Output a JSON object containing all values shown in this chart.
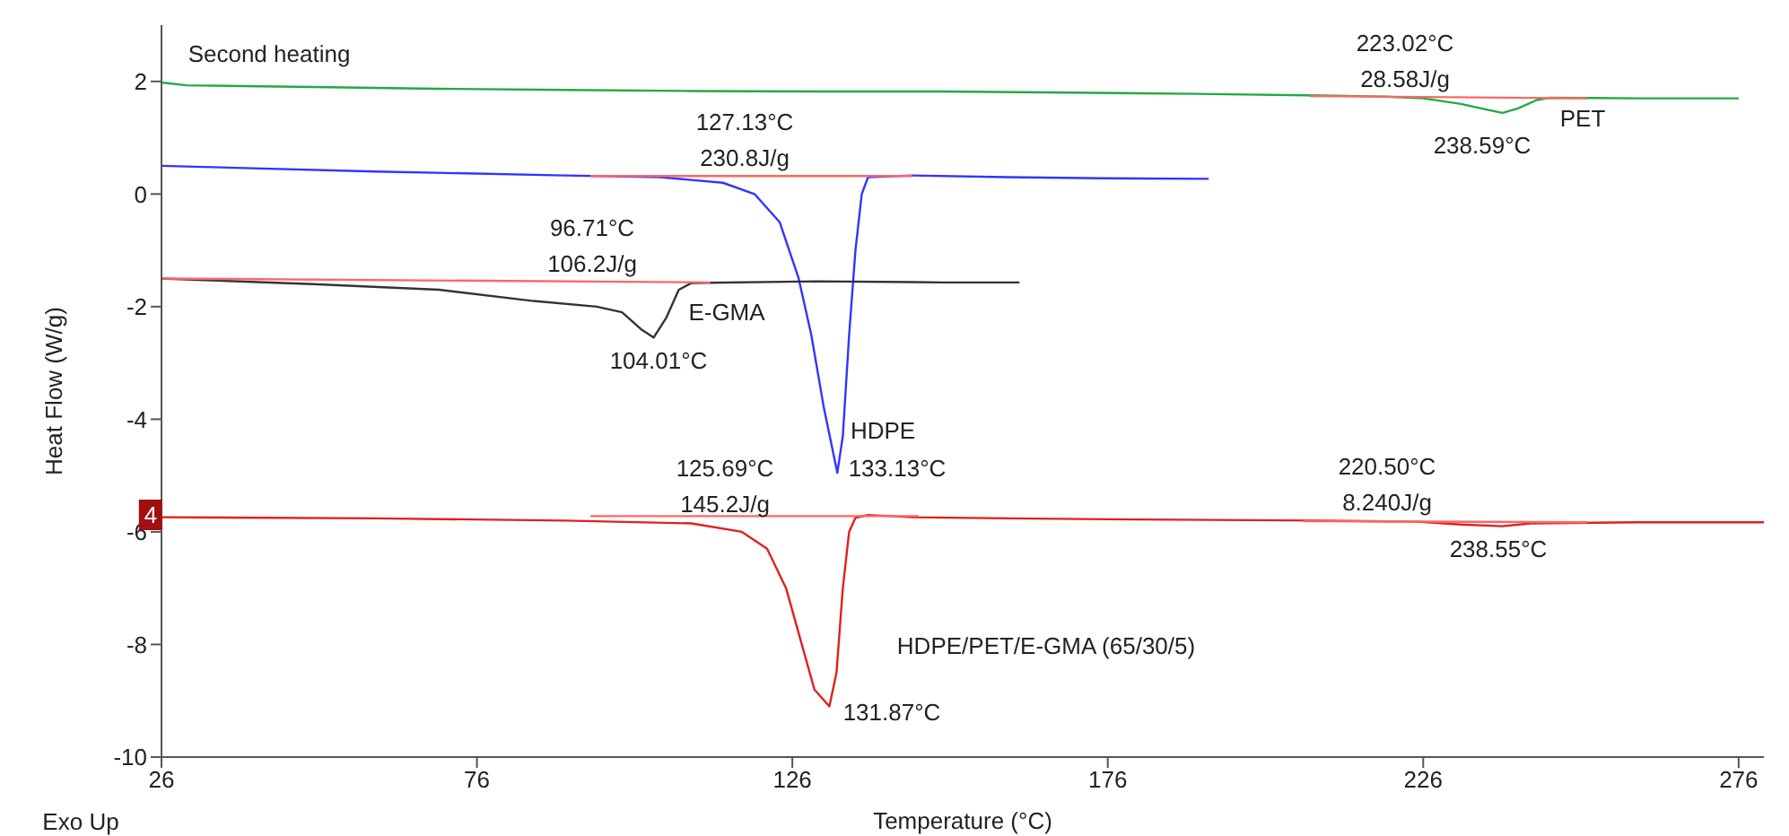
{
  "chart_data": {
    "type": "line",
    "xlabel": "Temperature (°C)",
    "ylabel": "Heat Flow (W/g)",
    "xlim": [
      26,
      280
    ],
    "xticks": [
      26,
      76,
      126,
      176,
      226,
      276
    ],
    "ylim": [
      -10,
      3
    ],
    "yticks": [
      -10,
      -8,
      -6,
      -4,
      -2,
      0,
      2
    ],
    "grid": false,
    "marker": "none",
    "line_style": "solid",
    "series": [
      {
        "color": "#22aa44",
        "x": [
          26,
          30,
          50,
          70,
          90,
          110,
          130,
          150,
          170,
          190,
          210,
          220,
          226,
          232,
          236,
          238.59,
          241,
          244,
          246,
          260,
          276
        ],
        "values": [
          1.98,
          1.93,
          1.9,
          1.87,
          1.85,
          1.83,
          1.82,
          1.82,
          1.8,
          1.78,
          1.75,
          1.73,
          1.7,
          1.6,
          1.5,
          1.44,
          1.52,
          1.67,
          1.71,
          1.7,
          1.7
        ]
      },
      {
        "color": "#3333ff",
        "x": [
          26,
          60,
          90,
          105,
          115,
          120,
          124,
          127,
          129,
          131,
          133.13,
          134,
          135,
          136,
          137,
          138,
          145,
          160,
          175,
          192
        ],
        "values": [
          0.5,
          0.4,
          0.33,
          0.3,
          0.2,
          0,
          -0.5,
          -1.5,
          -2.5,
          -3.8,
          -4.95,
          -4.3,
          -2.5,
          -1,
          0,
          0.3,
          0.33,
          0.3,
          0.28,
          0.27
        ]
      },
      {
        "color": "#333333",
        "x": [
          26,
          50,
          70,
          85,
          95,
          99,
          102,
          104.01,
          106,
          108,
          110,
          130,
          150,
          162
        ],
        "values": [
          -1.5,
          -1.6,
          -1.7,
          -1.9,
          -2,
          -2.1,
          -2.4,
          -2.55,
          -2.2,
          -1.7,
          -1.58,
          -1.55,
          -1.57,
          -1.57
        ]
      },
      {
        "color": "#e02020",
        "x": [
          26,
          60,
          90,
          110,
          118,
          122,
          125,
          127,
          129.5,
          131.87,
          133,
          134,
          135,
          136,
          138,
          145,
          160,
          180,
          210,
          225,
          232,
          238.55,
          243,
          260,
          280
        ],
        "values": [
          -5.74,
          -5.76,
          -5.8,
          -5.85,
          -6,
          -6.3,
          -7,
          -7.8,
          -8.8,
          -9.1,
          -8.5,
          -7,
          -6,
          -5.75,
          -5.7,
          -5.74,
          -5.76,
          -5.78,
          -5.8,
          -5.82,
          -5.87,
          -5.9,
          -5.85,
          -5.83,
          -5.83
        ]
      },
      {
        "color": "#ff6666",
        "x": [
          26,
          113
        ],
        "values": [
          -1.5,
          -1.57
        ]
      },
      {
        "color": "#ff6666",
        "x": [
          94,
          145
        ],
        "values": [
          0.32,
          0.32
        ]
      },
      {
        "color": "#ff6666",
        "x": [
          208,
          252
        ],
        "values": [
          1.74,
          1.7
        ]
      },
      {
        "color": "#ff6666",
        "x": [
          94,
          146
        ],
        "values": [
          -5.72,
          -5.72
        ]
      },
      {
        "color": "#ff6666",
        "x": [
          207,
          252
        ],
        "values": [
          -5.81,
          -5.83
        ]
      }
    ],
    "annotations": [
      "Second heating",
      "Exo Up",
      "4",
      "127.13°C",
      "230.8J/g",
      "96.71°C",
      "106.2J/g",
      "E-GMA",
      "104.01°C",
      "HDPE",
      "133.13°C",
      "223.02°C",
      "28.58J/g",
      "PET",
      "238.59°C",
      "125.69°C",
      "145.2J/g",
      "HDPE/PET/E-GMA (65/30/5)",
      "131.87°C",
      "220.50°C",
      "8.240J/g",
      "238.55°C"
    ]
  }
}
